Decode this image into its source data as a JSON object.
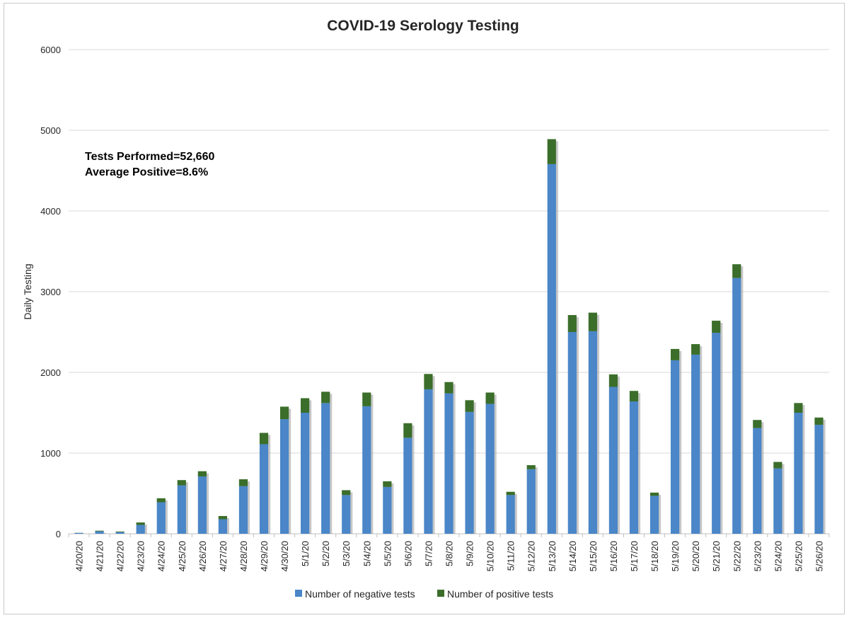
{
  "chart_data": {
    "type": "bar",
    "stacked": true,
    "title": "COVID-19 Serology Testing",
    "xlabel": "",
    "ylabel": "Daily Testing",
    "ylim": [
      0,
      6000
    ],
    "yticks": [
      "0",
      "1000",
      "2000",
      "3000",
      "4000",
      "5000",
      "6000"
    ],
    "grid": true,
    "legend_position": "bottom",
    "annotations": [
      "Tests Performed=52,660",
      "Average Positive=8.6%"
    ],
    "colors": {
      "negative": "#4a86c8",
      "positive": "#3b6e2a"
    },
    "categories": [
      "4/20/20",
      "4/21/20",
      "4/22/20",
      "4/23/20",
      "4/24/20",
      "4/25/20",
      "4/26/20",
      "4/27/20",
      "4/28/20",
      "4/29/20",
      "4/30/20",
      "5/1/20",
      "5/2/20",
      "5/3/20",
      "5/4/20",
      "5/5/20",
      "5/6/20",
      "5/7/20",
      "5/8/20",
      "5/9/20",
      "5/10/20",
      "5/11/20",
      "5/12/20",
      "5/13/20",
      "5/14/20",
      "5/15/20",
      "5/16/20",
      "5/17/20",
      "5/18/20",
      "5/19/20",
      "5/20/20",
      "5/21/20",
      "5/22/20",
      "5/23/20",
      "5/24/20",
      "5/25/20",
      "5/26/20"
    ],
    "series": [
      {
        "name": "Number of negative tests",
        "values": [
          10,
          30,
          20,
          110,
          390,
          600,
          710,
          180,
          590,
          1110,
          1420,
          1500,
          1620,
          480,
          1580,
          580,
          1190,
          1790,
          1740,
          1510,
          1610,
          480,
          800,
          4580,
          2500,
          2510,
          1820,
          1640,
          470,
          2150,
          2220,
          2490,
          3170,
          1310,
          810,
          1500,
          1350
        ]
      },
      {
        "name": "Number of positive tests",
        "values": [
          2,
          8,
          8,
          30,
          50,
          65,
          65,
          40,
          85,
          140,
          155,
          180,
          140,
          60,
          170,
          70,
          180,
          190,
          140,
          145,
          140,
          40,
          50,
          310,
          210,
          230,
          155,
          130,
          40,
          140,
          130,
          150,
          170,
          100,
          80,
          120,
          90
        ]
      }
    ]
  }
}
